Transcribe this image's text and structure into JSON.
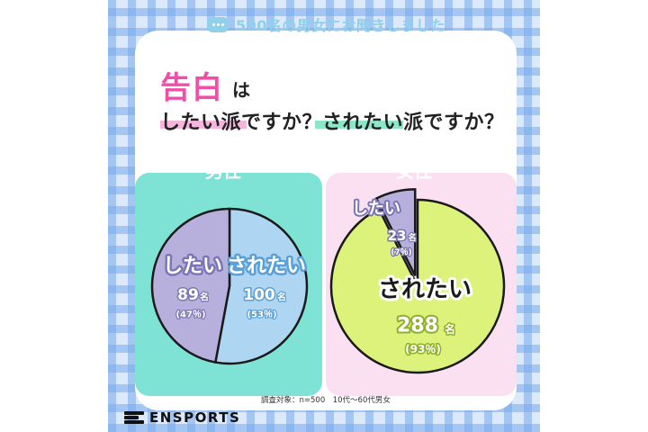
{
  "header": {
    "survey_label": "500名の男女にお聞きしました",
    "title_main": "告白",
    "title_particle": "は",
    "subtitle": "したい派ですか？されたい派ですか？"
  },
  "chart_data": [
    {
      "type": "pie",
      "title": "男性",
      "slices": [
        {
          "label": "したい",
          "value": 89,
          "count_text": "89",
          "unit": "名",
          "percent_text": "(47％)",
          "color": "#b7b0dc"
        },
        {
          "label": "されたい",
          "value": 100,
          "count_text": "100",
          "unit": "名",
          "percent_text": "(53％)",
          "color": "#aed6f3"
        }
      ]
    },
    {
      "type": "pie",
      "title": "女性",
      "slices": [
        {
          "label": "したい",
          "value": 23,
          "count_text": "23",
          "unit": "名",
          "percent_text": "(7％)",
          "color": "#b7b0dc"
        },
        {
          "label": "されたい",
          "value": 288,
          "count_text": "288",
          "unit": "名",
          "percent_text": "(93％)",
          "color": "#dcf27b"
        }
      ]
    }
  ],
  "footer": {
    "source": "調査対象：n=500　10代〜60代男女",
    "brand": "ENSPORTS"
  },
  "colors": {
    "pink": "#f04fa8",
    "male_panel": "#7ee3d4",
    "female_panel": "#fbe0f2",
    "header_blue": "#8fd0ea"
  }
}
